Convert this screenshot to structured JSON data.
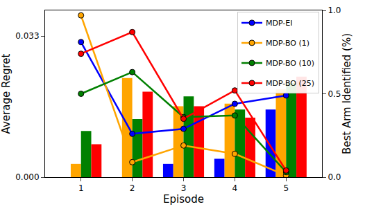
{
  "chart_data": {
    "type": "bar",
    "x_label": "Episode",
    "y_label": "Average Regret",
    "y2_label": "Best Arm Identified (%)",
    "x": [
      1,
      2,
      3,
      4,
      5
    ],
    "xlim": [
      0.3,
      5.7
    ],
    "xticks": [
      1,
      2,
      3,
      4,
      5
    ],
    "ylim": [
      0,
      0.039
    ],
    "yticks": [
      {
        "value": 0,
        "label": "0.000"
      },
      {
        "value": 0.033,
        "label": "0.033"
      }
    ],
    "y2lim": [
      0,
      1.0
    ],
    "y2ticks": [
      {
        "value": 0,
        "label": "0.0"
      },
      {
        "value": 0.5,
        "label": "0.5"
      },
      {
        "value": 1.0,
        "label": "1.0"
      }
    ],
    "grid": false,
    "legend": "upper right",
    "marker": "circle",
    "series": [
      {
        "name": "MDP-EI",
        "type": "bar",
        "color": "#0000ff",
        "values": [
          0,
          0,
          0.0031,
          0.0043,
          0.0158
        ]
      },
      {
        "name": "MDP-BO (1)",
        "type": "bar",
        "color": "#ffa500",
        "values": [
          0.0031,
          0.0232,
          0.0166,
          0.0172,
          0.0205
        ]
      },
      {
        "name": "MDP-BO (10)",
        "type": "bar",
        "color": "#008000",
        "values": [
          0.0108,
          0.0136,
          0.0189,
          0.0158,
          0.022
        ]
      },
      {
        "name": "MDP-BO (25)",
        "type": "bar",
        "color": "#ff0000",
        "values": [
          0.0077,
          0.02,
          0.0166,
          0.0139,
          0.0235
        ]
      },
      {
        "name": "MDP-EI",
        "type": "line",
        "axis": "y2",
        "color": "#0000ff",
        "values": [
          0.81,
          0.26,
          0.29,
          0.44,
          0.49
        ]
      },
      {
        "name": "MDP-BO (1)",
        "type": "line",
        "axis": "y2",
        "color": "#ffa500",
        "values": [
          0.97,
          0.09,
          0.19,
          0.14,
          0.01
        ]
      },
      {
        "name": "MDP-BO (10)",
        "type": "line",
        "axis": "y2",
        "color": "#008000",
        "values": [
          0.5,
          0.63,
          0.36,
          0.37,
          0.03
        ]
      },
      {
        "name": "MDP-BO (25)",
        "type": "line",
        "axis": "y2",
        "color": "#ff0000",
        "values": [
          0.74,
          0.87,
          0.35,
          0.52,
          0.04
        ]
      }
    ]
  }
}
